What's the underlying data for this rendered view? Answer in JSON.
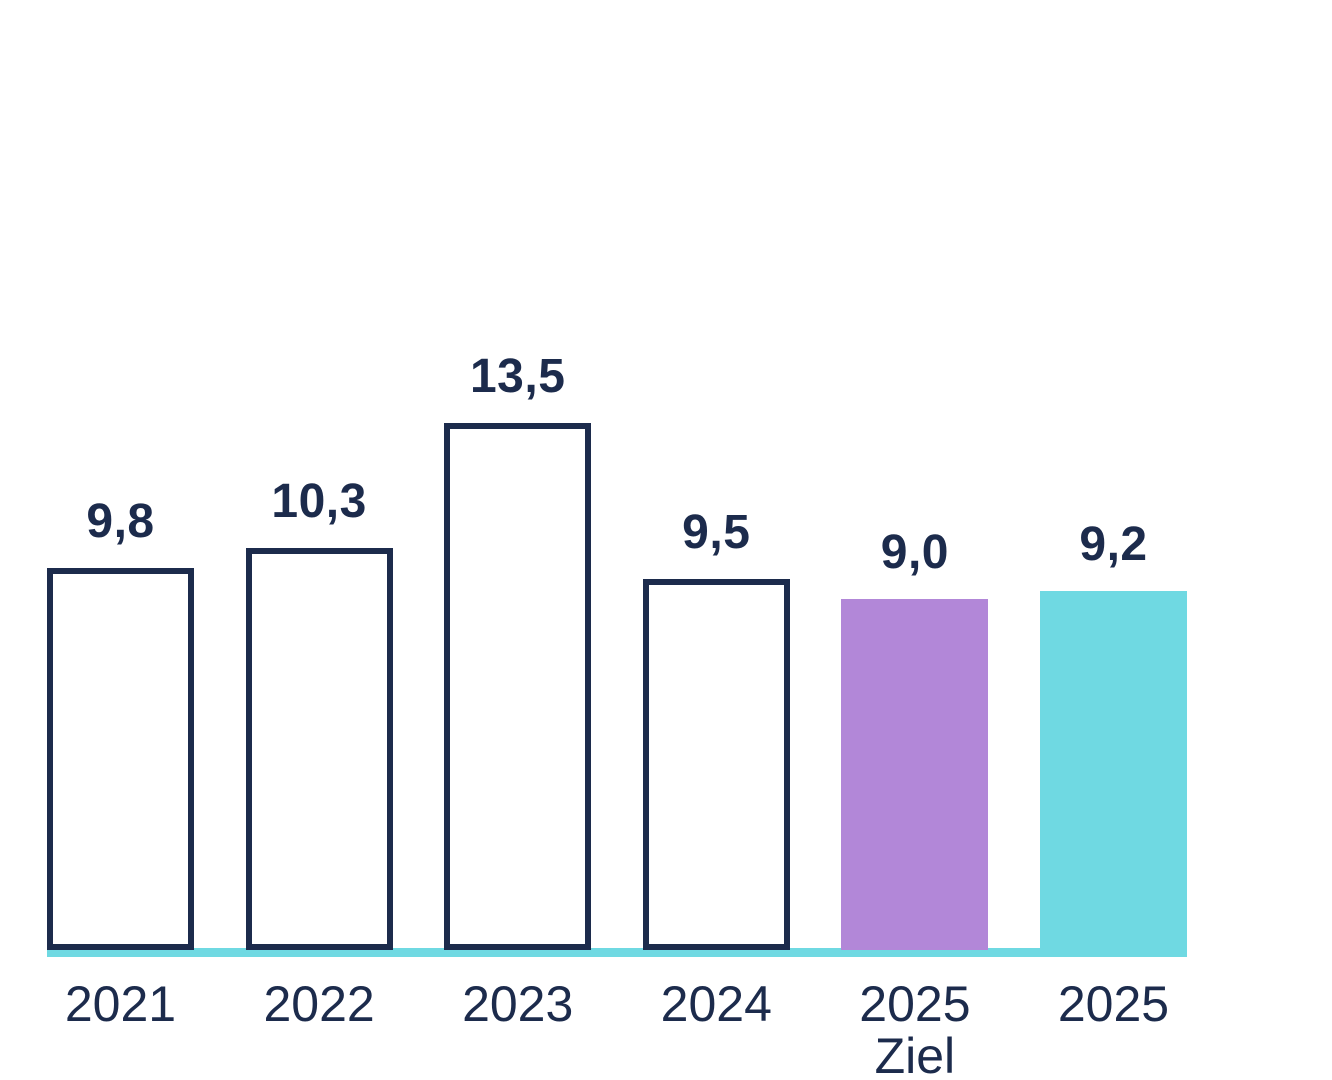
{
  "chart_data": {
    "type": "bar",
    "title": "",
    "xlabel": "",
    "ylabel": "",
    "ylim": [
      0,
      13.5
    ],
    "grid": false,
    "legend": false,
    "value_label_format": "decimal-comma",
    "categories": [
      "2021",
      "2022",
      "2023",
      "2024",
      "2025 Ziel",
      "2025"
    ],
    "values": [
      9.8,
      10.3,
      13.5,
      9.5,
      9.0,
      9.2
    ],
    "bars": [
      {
        "category": "2021",
        "sublabel": "",
        "value": 9.8,
        "value_label": "9,8",
        "style": "outline"
      },
      {
        "category": "2022",
        "sublabel": "",
        "value": 10.3,
        "value_label": "10,3",
        "style": "outline"
      },
      {
        "category": "2023",
        "sublabel": "",
        "value": 13.5,
        "value_label": "13,5",
        "style": "outline"
      },
      {
        "category": "2024",
        "sublabel": "",
        "value": 9.5,
        "value_label": "9,5",
        "style": "outline"
      },
      {
        "category": "2025",
        "sublabel": "Ziel",
        "value": 9.0,
        "value_label": "9,0",
        "style": "purple"
      },
      {
        "category": "2025",
        "sublabel": "",
        "value": 9.2,
        "value_label": "9,2",
        "style": "cyan"
      }
    ],
    "colors": {
      "navy": "#1C2B4C",
      "purple": "#B287D8",
      "cyan": "#6FD9E2",
      "baseline": "#6FD9E2",
      "background": "#FFFFFF"
    }
  }
}
